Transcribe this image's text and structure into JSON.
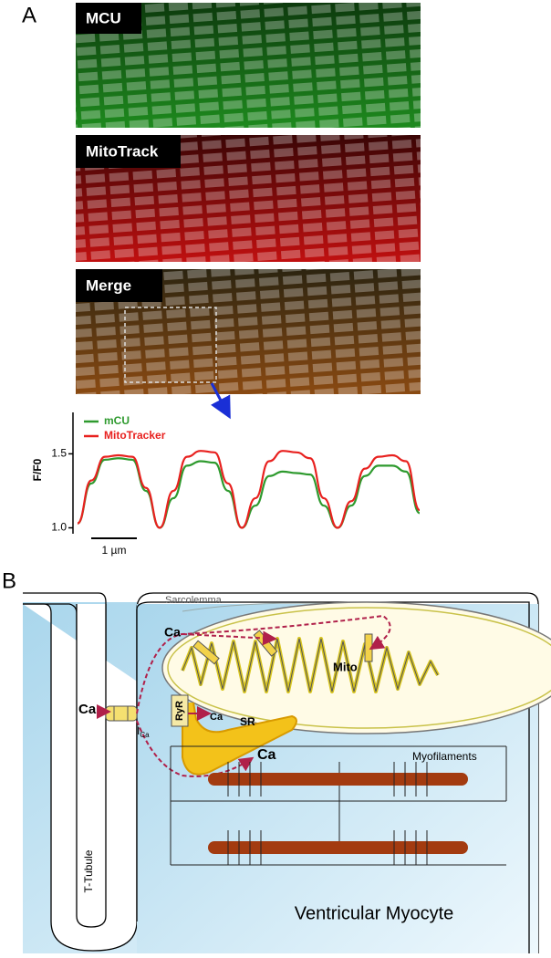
{
  "panel_a": {
    "label": "A",
    "images": [
      {
        "label": "MCU"
      },
      {
        "label": "MitoTrack"
      },
      {
        "label": "Merge"
      }
    ]
  },
  "chart_data": {
    "type": "line",
    "ylabel": "F/F0",
    "ylim": [
      0.96,
      1.78
    ],
    "yticks": [
      {
        "value": 1,
        "label": "1.0"
      },
      {
        "value": 1.5,
        "label": "1.5"
      }
    ],
    "scale_bar": "1 µm",
    "series": [
      {
        "name": "mCU",
        "color": "#2e9a2e",
        "values": [
          1.03,
          1.3,
          1.46,
          1.47,
          1.46,
          1.25,
          1.0,
          1.2,
          1.42,
          1.45,
          1.44,
          1.25,
          1.0,
          1.15,
          1.35,
          1.38,
          1.37,
          1.36,
          1.15,
          1.0,
          1.15,
          1.35,
          1.42,
          1.42,
          1.38,
          1.1
        ]
      },
      {
        "name": "MitoTracker",
        "color": "#e8211f",
        "values": [
          1.03,
          1.32,
          1.48,
          1.49,
          1.48,
          1.27,
          1.0,
          1.25,
          1.48,
          1.52,
          1.51,
          1.3,
          1.0,
          1.2,
          1.45,
          1.52,
          1.51,
          1.47,
          1.2,
          1.0,
          1.18,
          1.4,
          1.48,
          1.49,
          1.45,
          1.12
        ]
      }
    ]
  },
  "panel_b": {
    "label": "B",
    "labels": {
      "sarcolemma": "Sarcolemma",
      "ca_mito": "Ca",
      "mito": "Mito",
      "ca_in": "Ca",
      "ica": "I",
      "ica_sub": "Ca",
      "ryr": "RyR",
      "ca_ryr": "Ca",
      "sr": "SR",
      "ca_myo": "Ca",
      "myofilaments": "Myofilaments",
      "t_tubule": "T-Tubule",
      "cell": "Ventricular Myocyte"
    }
  }
}
